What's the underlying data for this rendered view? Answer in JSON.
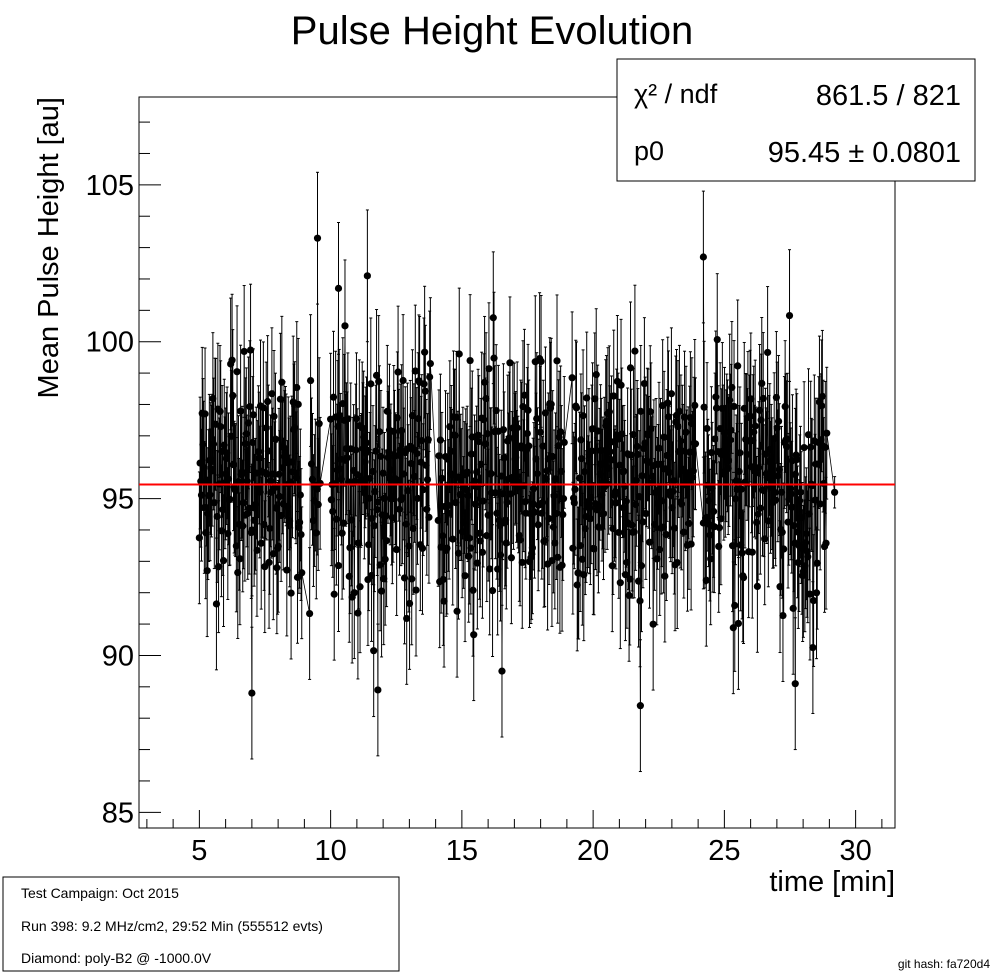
{
  "chart_data": {
    "type": "scatter",
    "title": "Pulse Height Evolution",
    "xlabel": "time [min]",
    "ylabel": "Mean Pulse Height [au]",
    "xlim": [
      2.7,
      31.5
    ],
    "ylim": [
      84.5,
      107.8
    ],
    "x_ticks": [
      5,
      10,
      15,
      20,
      25,
      30
    ],
    "y_ticks": [
      85,
      90,
      95,
      100,
      105
    ],
    "grid": false,
    "fit": {
      "name": "pol0",
      "value": 95.45,
      "color": "#ff0000"
    },
    "stats_box": {
      "rows": [
        {
          "label": "χ² / ndf",
          "value": "861.5 / 821"
        },
        {
          "label": "p0",
          "value": "95.45 ± 0.0801"
        }
      ]
    },
    "series": [
      {
        "marker": "filled-circle",
        "color": "#000000",
        "error_bar_halfwidth": 2.1,
        "segments": [
          {
            "x_start": 5.0,
            "x_end": 8.9,
            "count": 145
          },
          {
            "x_start": 9.2,
            "x_end": 9.6,
            "count": 12
          },
          {
            "x_start": 10.0,
            "x_end": 13.8,
            "count": 140
          },
          {
            "x_start": 14.1,
            "x_end": 18.9,
            "count": 175
          },
          {
            "x_start": 19.2,
            "x_end": 23.9,
            "count": 170
          },
          {
            "x_start": 24.2,
            "x_end": 28.9,
            "count": 170
          }
        ],
        "highlights": [
          {
            "x": 9.5,
            "y": 103.3
          },
          {
            "x": 24.2,
            "y": 102.7
          },
          {
            "x": 21.8,
            "y": 88.4
          },
          {
            "x": 7.0,
            "y": 88.8
          },
          {
            "x": 11.8,
            "y": 88.9
          },
          {
            "x": 27.7,
            "y": 89.1
          },
          {
            "x": 29.2,
            "y": 95.2
          },
          {
            "x": 10.3,
            "y": 101.7
          },
          {
            "x": 11.4,
            "y": 102.1
          }
        ]
      }
    ]
  },
  "info_box": {
    "lines": [
      "Test Campaign: Oct 2015",
      "Run 398: 9.2 MHz/cm2, 29:52 Min (555512 evts)",
      "Diamond: poly-B2 @ -1000.0V"
    ]
  },
  "footer": {
    "git_hash": "git hash: fa720d4"
  }
}
